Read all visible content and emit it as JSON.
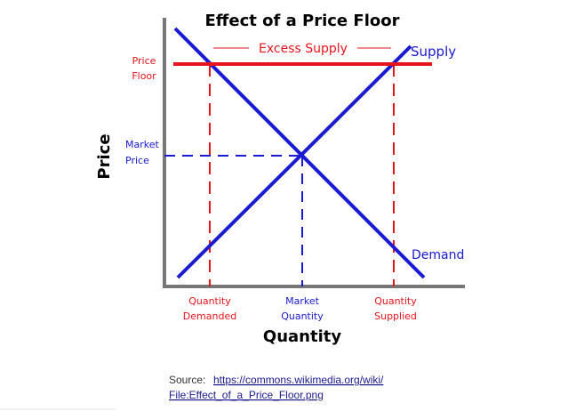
{
  "title": "Effect of a Price Floor",
  "y_axis_label": "Price",
  "x_axis_label": "Quantity",
  "price_floor_label": [
    "Price",
    "Floor"
  ],
  "market_price_label": [
    "Market",
    "Price"
  ],
  "excess_supply_label": "Excess Supply",
  "supply_label": "Supply",
  "demand_label": "Demand",
  "quantity_demanded_label": [
    "Quantity",
    "Demanded"
  ],
  "market_quantity_label": [
    "Market",
    "Quantity"
  ],
  "quantity_supplied_label": [
    "Quantity",
    "Supplied"
  ],
  "source": {
    "label": "Source:",
    "link_lines": [
      "https://commons.wikimedia.org/wiki/",
      "File:Effect_of_a_Price_Floor.png"
    ]
  }
}
